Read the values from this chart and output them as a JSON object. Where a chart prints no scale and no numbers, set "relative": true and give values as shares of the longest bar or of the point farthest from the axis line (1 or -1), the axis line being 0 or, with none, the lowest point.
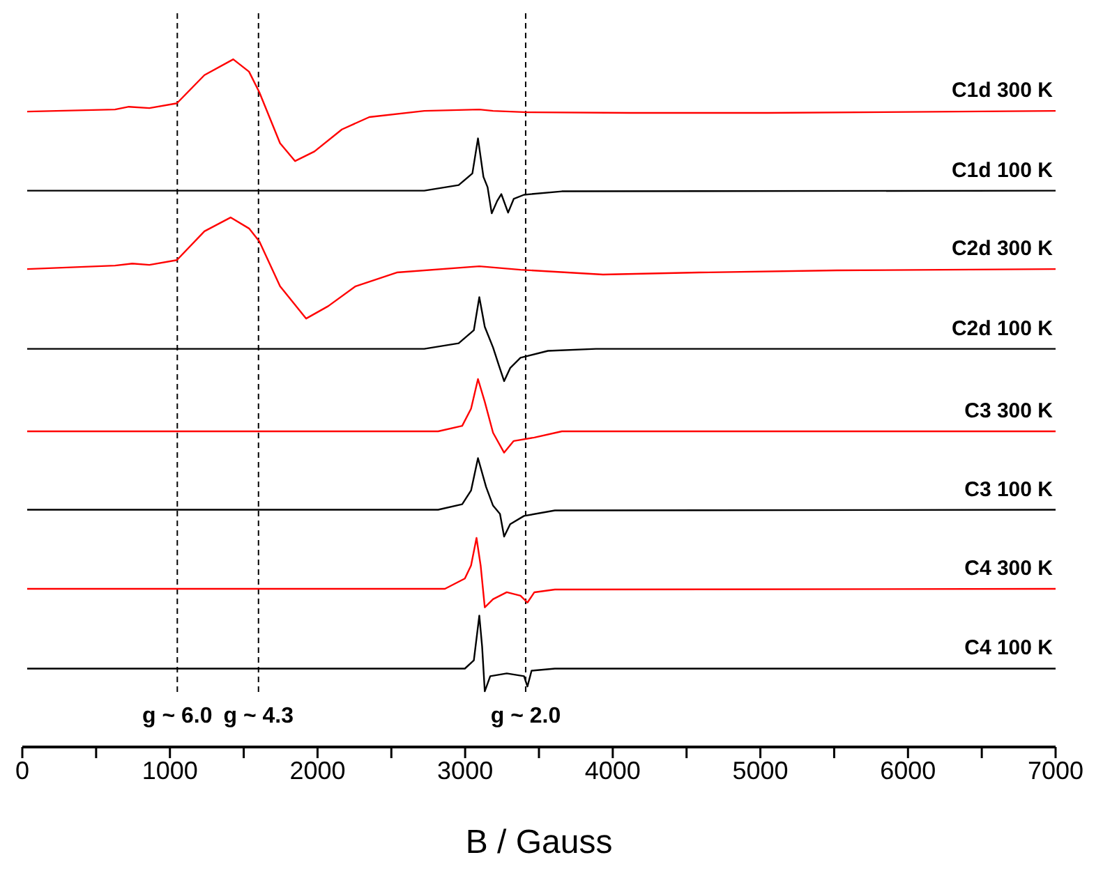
{
  "chart_data": {
    "type": "line",
    "relative": true,
    "xlabel": "B / Gauss",
    "xlim": [
      0,
      7000
    ],
    "xticks": [
      0,
      {
        "value": 500,
        "label": null
      },
      1000,
      {
        "value": 1500,
        "label": null
      },
      2000,
      {
        "value": 2500,
        "label": null
      },
      3000,
      {
        "value": 3500,
        "label": null
      },
      4000,
      {
        "value": 4500,
        "label": null
      },
      5000,
      {
        "value": 5500,
        "label": null
      },
      6000,
      {
        "value": 6500,
        "label": null
      },
      7000
    ],
    "grid": false,
    "legend": false,
    "marker": "none",
    "line_style": "solid",
    "ref_lines": [
      {
        "axis": "x",
        "value": 1050,
        "label": "g ~ 6.0",
        "line_style": "dashed",
        "color": "#000000"
      },
      {
        "axis": "x",
        "value": 1600,
        "label": "g ~ 4.3",
        "line_style": "dashed",
        "color": "#000000"
      },
      {
        "axis": "x",
        "value": 3410,
        "label": "g ~ 2.0",
        "line_style": "dashed",
        "color": "#000000"
      }
    ],
    "series": [
      {
        "name": "C1d 300 K",
        "color": "#ff0000",
        "x": [
          33,
          628,
          722,
          861,
          1047,
          1234,
          1429,
          1536,
          1606,
          1746,
          1848,
          1979,
          2165,
          2351,
          2723,
          3096,
          3189,
          3422,
          4120,
          5051,
          7000
        ],
        "values": [
          0.924,
          0.927,
          0.931,
          0.929,
          0.936,
          0.977,
          1.0,
          0.982,
          0.952,
          0.878,
          0.852,
          0.866,
          0.898,
          0.916,
          0.925,
          0.927,
          0.925,
          0.923,
          0.922,
          0.922,
          0.925
        ]
      },
      {
        "name": "C1d 100 K",
        "color": "#000000",
        "x": [
          33,
          2723,
          2956,
          3049,
          3087,
          3124,
          3152,
          3180,
          3217,
          3245,
          3291,
          3329,
          3399,
          3655,
          7000
        ],
        "values": [
          0.809,
          0.809,
          0.817,
          0.834,
          0.885,
          0.829,
          0.814,
          0.776,
          0.794,
          0.804,
          0.777,
          0.797,
          0.803,
          0.808,
          0.809
        ]
      },
      {
        "name": "C2d 300 K",
        "color": "#ff0000",
        "x": [
          33,
          628,
          745,
          861,
          1047,
          1234,
          1411,
          1536,
          1606,
          1746,
          1923,
          2072,
          2258,
          2537,
          3096,
          3375,
          3934,
          4586,
          5517,
          7000
        ],
        "values": [
          0.695,
          0.7,
          0.703,
          0.701,
          0.708,
          0.75,
          0.77,
          0.754,
          0.735,
          0.67,
          0.623,
          0.641,
          0.67,
          0.69,
          0.699,
          0.694,
          0.687,
          0.69,
          0.693,
          0.695
        ]
      },
      {
        "name": "C2d 100 K",
        "color": "#000000",
        "x": [
          33,
          2723,
          2956,
          3059,
          3096,
          3133,
          3189,
          3227,
          3264,
          3305,
          3375,
          3561,
          3887,
          7000
        ],
        "values": [
          0.579,
          0.579,
          0.587,
          0.606,
          0.654,
          0.611,
          0.581,
          0.556,
          0.532,
          0.551,
          0.566,
          0.576,
          0.579,
          0.579
        ]
      },
      {
        "name": "C3 300 K",
        "color": "#ff0000",
        "x": [
          33,
          2817,
          2980,
          3040,
          3087,
          3133,
          3189,
          3264,
          3329,
          3469,
          3655,
          7000
        ],
        "values": [
          0.459,
          0.459,
          0.467,
          0.492,
          0.535,
          0.502,
          0.457,
          0.428,
          0.445,
          0.45,
          0.459,
          0.459
        ]
      },
      {
        "name": "C3 100 K",
        "color": "#000000",
        "x": [
          33,
          2817,
          2980,
          3040,
          3087,
          3142,
          3189,
          3236,
          3264,
          3305,
          3399,
          3608,
          7000
        ],
        "values": [
          0.345,
          0.345,
          0.353,
          0.373,
          0.42,
          0.378,
          0.351,
          0.339,
          0.306,
          0.324,
          0.336,
          0.344,
          0.345
        ]
      },
      {
        "name": "C4 300 K",
        "color": "#ff0000",
        "x": [
          33,
          2863,
          2998,
          3040,
          3077,
          3105,
          3133,
          3189,
          3282,
          3375,
          3422,
          3469,
          3608,
          7000
        ],
        "values": [
          0.23,
          0.23,
          0.245,
          0.264,
          0.304,
          0.264,
          0.203,
          0.215,
          0.225,
          0.22,
          0.21,
          0.225,
          0.229,
          0.23
        ]
      },
      {
        "name": "C4 100 K",
        "color": "#000000",
        "x": [
          33,
          2998,
          3059,
          3096,
          3115,
          3133,
          3170,
          3282,
          3399,
          3422,
          3450,
          3608,
          7000
        ],
        "values": [
          0.114,
          0.114,
          0.126,
          0.191,
          0.146,
          0.081,
          0.103,
          0.107,
          0.103,
          0.088,
          0.111,
          0.114,
          0.114
        ]
      }
    ]
  }
}
